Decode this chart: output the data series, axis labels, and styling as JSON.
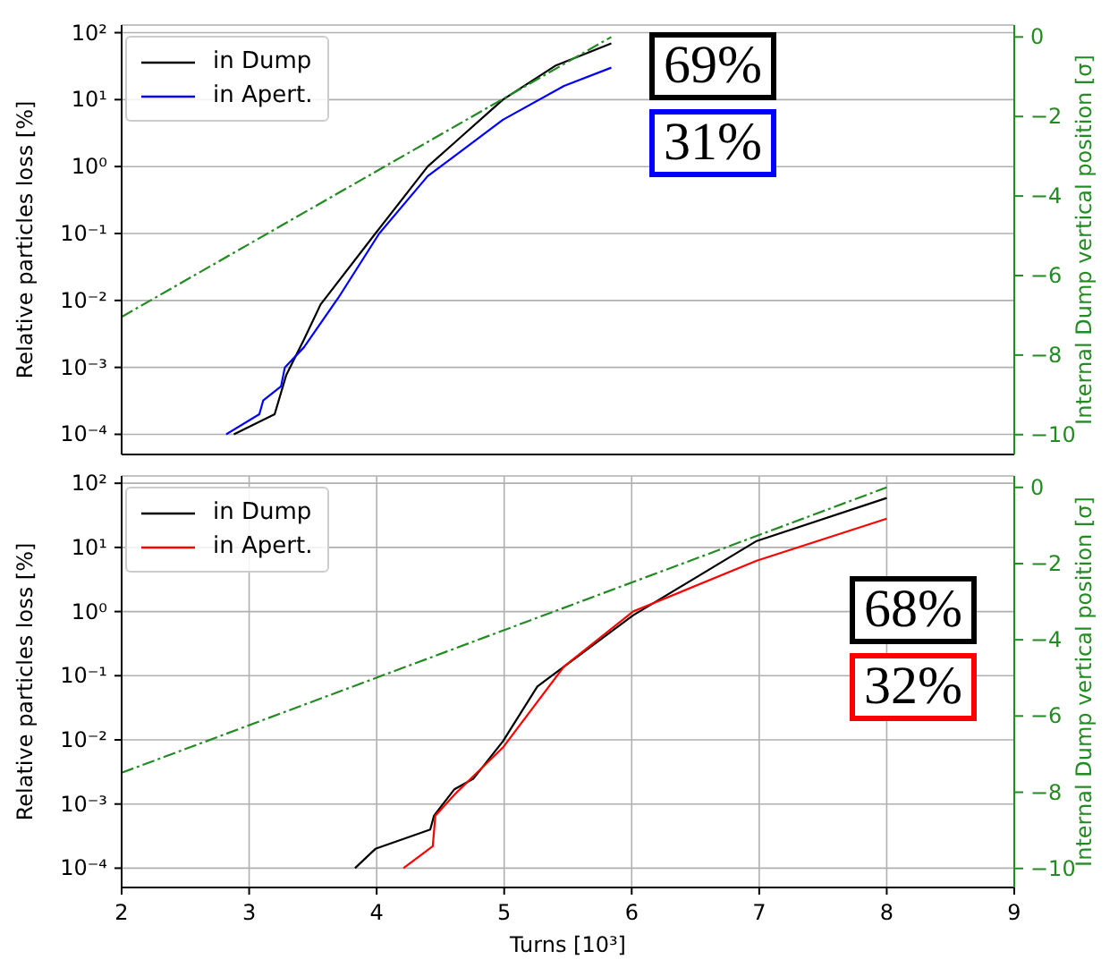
{
  "chart_data": [
    {
      "type": "line",
      "ylabel": "Relative particles loss  [%]",
      "y2label": "Internal Dump vertical position [σ]",
      "log": "y",
      "grid": true,
      "legend": "top left",
      "tick_labels": "y",
      "marker": "none",
      "xlim": [
        2,
        9
      ],
      "xticks": [
        2,
        3,
        4,
        5,
        6,
        7,
        8,
        9
      ],
      "ylim": [
        5e-05,
        130
      ],
      "yticks": [
        {
          "value": 0.0001,
          "label": "10⁻⁴"
        },
        {
          "value": 0.001,
          "label": "10⁻³"
        },
        {
          "value": 0.01,
          "label": "10⁻²"
        },
        {
          "value": 0.1,
          "label": "10⁻¹"
        },
        {
          "value": 1,
          "label": "10⁰"
        },
        {
          "value": 10,
          "label": "10¹"
        },
        {
          "value": 100,
          "label": "10²"
        }
      ],
      "y2lim": [
        -10.5,
        0.3
      ],
      "y2ticks": [
        0,
        -2,
        -4,
        -6,
        -8,
        -10
      ],
      "series": [
        {
          "name": "in Dump",
          "color": "#000000",
          "x": [
            2.88,
            3.2,
            3.29,
            3.43,
            3.56,
            3.99,
            4.4,
            4.99,
            5.4,
            5.84
          ],
          "values": [
            0.0001,
            0.0002,
            0.00076,
            0.0026,
            0.0087,
            0.1,
            1,
            10,
            32,
            69
          ]
        },
        {
          "name": "in Apert.",
          "color": "#0000ff",
          "x": [
            2.82,
            3.08,
            3.11,
            3.25,
            3.28,
            3.43,
            3.7,
            4.02,
            4.4,
            4.99,
            5.47,
            5.84
          ],
          "values": [
            0.0001,
            0.0002,
            0.00032,
            0.00052,
            0.001,
            0.002,
            0.011,
            0.1,
            0.72,
            5,
            16,
            30
          ]
        },
        {
          "color": "#228b22",
          "axis": "y2",
          "line_style": "dashed",
          "x": [
            2,
            5.84
          ],
          "values": [
            -7.04,
            0
          ]
        }
      ],
      "annotations": [
        "69%",
        "31%"
      ]
    },
    {
      "type": "line",
      "xlabel": "Turns [10³]",
      "ylabel": "Relative particles loss  [%]",
      "y2label": "Internal Dump vertical position [σ]",
      "log": "y",
      "grid": true,
      "legend": "top left",
      "marker": "none",
      "xlim": [
        2,
        9
      ],
      "xticks": [
        2,
        3,
        4,
        5,
        6,
        7,
        8,
        9
      ],
      "ylim": [
        5e-05,
        130
      ],
      "yticks": [
        {
          "value": 0.0001,
          "label": "10⁻⁴"
        },
        {
          "value": 0.001,
          "label": "10⁻³"
        },
        {
          "value": 0.01,
          "label": "10⁻²"
        },
        {
          "value": 0.1,
          "label": "10⁻¹"
        },
        {
          "value": 1,
          "label": "10⁰"
        },
        {
          "value": 10,
          "label": "10¹"
        },
        {
          "value": 100,
          "label": "10²"
        }
      ],
      "y2lim": [
        -10.5,
        0.3
      ],
      "y2ticks": [
        0,
        -2,
        -4,
        -6,
        -8,
        -10
      ],
      "series": [
        {
          "name": "in Dump",
          "color": "#000000",
          "x": [
            3.83,
            3.99,
            4.42,
            4.45,
            4.61,
            4.76,
            4.99,
            5.26,
            6.01,
            6.98,
            8.0
          ],
          "values": [
            0.0001,
            0.0002,
            0.0004,
            0.00066,
            0.0017,
            0.0025,
            0.0095,
            0.068,
            0.87,
            12.6,
            59
          ]
        },
        {
          "name": "in Apert.",
          "color": "#ff0000",
          "x": [
            4.21,
            4.44,
            4.46,
            4.61,
            4.99,
            5.47,
            6.01,
            6.98,
            8.0
          ],
          "values": [
            0.0001,
            0.00022,
            0.00066,
            0.0014,
            0.0076,
            0.14,
            1,
            6.2,
            28
          ]
        },
        {
          "color": "#228b22",
          "axis": "y2",
          "line_style": "dashed",
          "x": [
            2,
            8.0
          ],
          "values": [
            -7.49,
            0
          ]
        }
      ],
      "annotations": [
        "68%",
        "32%"
      ]
    }
  ]
}
